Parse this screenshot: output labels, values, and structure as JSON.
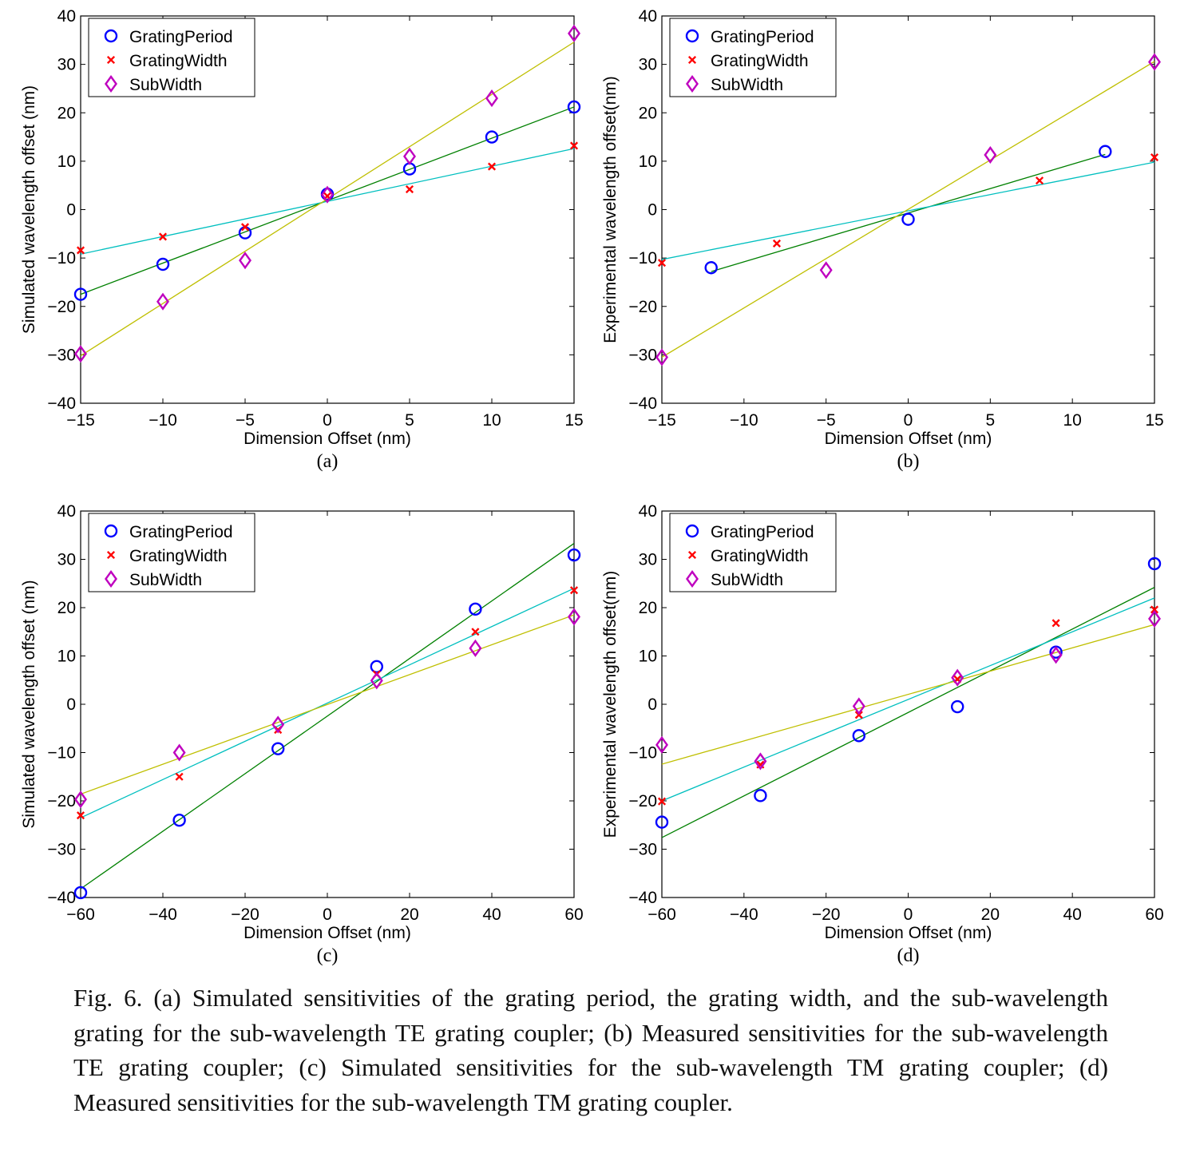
{
  "figure": {
    "caption": "Fig. 6. (a) Simulated sensitivities of the grating period, the grating width, and the sub-wavelength grating for the sub-wavelength TE grating coupler; (b) Measured sensitivities for the sub-wavelength TE grating coupler; (c) Simulated sensitivities for the sub-wavelength TM grating coupler; (d) Measured sensitivities for the sub-wavelength TM grating coupler."
  },
  "colors": {
    "GratingPeriod": "#0000ff",
    "GratingWidth": "#ff0000",
    "SubWidth": "#bf00bf",
    "fit_GratingPeriod": "#008000",
    "fit_GratingWidth": "#00bfbf",
    "fit_SubWidth": "#bfbf00"
  },
  "chart_data": [
    {
      "type": "scatter",
      "panel_label": "(a)",
      "xlabel": "Dimension Offset (nm)",
      "ylabel": "Simulated wavelength offset (nm)",
      "xlim": [
        -15,
        15
      ],
      "ylim": [
        -40,
        40
      ],
      "xticks": [
        -15,
        -10,
        -5,
        0,
        5,
        10,
        15
      ],
      "xtick_labels": [
        "−15",
        "−10",
        "−5",
        "0",
        "5",
        "10",
        "15"
      ],
      "yticks": [
        -40,
        -30,
        -20,
        -10,
        0,
        10,
        20,
        30,
        40
      ],
      "ytick_labels": [
        "−40",
        "−30",
        "−20",
        "−10",
        "0",
        "10",
        "20",
        "30",
        "40"
      ],
      "grid": false,
      "legend_position": "top-left",
      "series": [
        {
          "name": "GratingPeriod",
          "marker": "circle",
          "x": [
            -15,
            -10,
            -5,
            0,
            5,
            10,
            15
          ],
          "y": [
            -17.5,
            -11.3,
            -4.8,
            3.2,
            8.4,
            15,
            21.2
          ],
          "fit": [
            [
              -15,
              -17.5
            ],
            [
              15,
              21.2
            ]
          ]
        },
        {
          "name": "GratingWidth",
          "marker": "x",
          "x": [
            -15,
            -10,
            -5,
            0,
            5,
            10,
            15
          ],
          "y": [
            -8.4,
            -5.6,
            -3.6,
            2.8,
            4.2,
            8.9,
            13.2
          ],
          "fit": [
            [
              -15,
              -9.2
            ],
            [
              15,
              12.6
            ]
          ]
        },
        {
          "name": "SubWidth",
          "marker": "diamond",
          "x": [
            -15,
            -10,
            -5,
            0,
            5,
            10,
            15
          ],
          "y": [
            -29.8,
            -19,
            -10.5,
            3.1,
            11,
            23,
            36.4
          ],
          "fit": [
            [
              -15,
              -30.2
            ],
            [
              15,
              34.6
            ]
          ]
        }
      ]
    },
    {
      "type": "scatter",
      "panel_label": "(b)",
      "xlabel": "Dimension Offset (nm)",
      "ylabel": "Experimental wavelength offset(nm)",
      "xlim": [
        -15,
        15
      ],
      "ylim": [
        -40,
        40
      ],
      "xticks": [
        -15,
        -10,
        -5,
        0,
        5,
        10,
        15
      ],
      "xtick_labels": [
        "−15",
        "−10",
        "−5",
        "0",
        "5",
        "10",
        "15"
      ],
      "yticks": [
        -40,
        -30,
        -20,
        -10,
        0,
        10,
        20,
        30,
        40
      ],
      "ytick_labels": [
        "−40",
        "−30",
        "−20",
        "−10",
        "0",
        "10",
        "20",
        "30",
        "40"
      ],
      "grid": false,
      "legend_position": "top-left",
      "series": [
        {
          "name": "GratingPeriod",
          "marker": "circle",
          "x": [
            -12,
            0,
            12
          ],
          "y": [
            -12,
            -2,
            12
          ],
          "fit": [
            [
              -12,
              -12.8
            ],
            [
              12,
              11.4
            ]
          ]
        },
        {
          "name": "GratingWidth",
          "marker": "x",
          "x": [
            -15,
            -8,
            8,
            15
          ],
          "y": [
            -11,
            -7,
            6,
            10.8
          ],
          "fit": [
            [
              -15,
              -10.3
            ],
            [
              15,
              9.8
            ]
          ]
        },
        {
          "name": "SubWidth",
          "marker": "diamond",
          "x": [
            -15,
            -5,
            5,
            15
          ],
          "y": [
            -30.5,
            -12.5,
            11.3,
            30.5
          ],
          "fit": [
            [
              -15,
              -30.5
            ],
            [
              15,
              30.6
            ]
          ]
        }
      ]
    },
    {
      "type": "scatter",
      "panel_label": "(c)",
      "xlabel": "Dimension Offset (nm)",
      "ylabel": "Simulated wavelength offset (nm)",
      "xlim": [
        -60,
        60
      ],
      "ylim": [
        -40,
        40
      ],
      "xticks": [
        -60,
        -40,
        -20,
        0,
        20,
        40,
        60
      ],
      "xtick_labels": [
        "−60",
        "−40",
        "−20",
        "0",
        "20",
        "40",
        "60"
      ],
      "yticks": [
        -40,
        -30,
        -20,
        -10,
        0,
        10,
        20,
        30,
        40
      ],
      "ytick_labels": [
        "−40",
        "−30",
        "−20",
        "−10",
        "0",
        "10",
        "20",
        "30",
        "40"
      ],
      "grid": false,
      "legend_position": "top-left",
      "series": [
        {
          "name": "GratingPeriod",
          "marker": "circle",
          "x": [
            -60,
            -36,
            -12,
            12,
            36,
            60
          ],
          "y": [
            -39,
            -24,
            -9.2,
            7.8,
            19.7,
            30.9
          ],
          "fit": [
            [
              -60,
              -38.2
            ],
            [
              60,
              33.3
            ]
          ]
        },
        {
          "name": "GratingWidth",
          "marker": "x",
          "x": [
            -60,
            -36,
            -12,
            12,
            36,
            60
          ],
          "y": [
            -23,
            -15,
            -5.3,
            6.2,
            15,
            23.6
          ],
          "fit": [
            [
              -60,
              -23.5
            ],
            [
              60,
              24
            ]
          ]
        },
        {
          "name": "SubWidth",
          "marker": "diamond",
          "x": [
            -60,
            -36,
            -12,
            12,
            36,
            60
          ],
          "y": [
            -19.7,
            -10,
            -4.2,
            4.9,
            11.6,
            18.1
          ],
          "fit": [
            [
              -60,
              -18.6
            ],
            [
              60,
              18.5
            ]
          ]
        }
      ]
    },
    {
      "type": "scatter",
      "panel_label": "(d)",
      "xlabel": "Dimension Offset (nm)",
      "ylabel": "Experimental wavelength offset(nm)",
      "xlim": [
        -60,
        60
      ],
      "ylim": [
        -40,
        40
      ],
      "xticks": [
        -60,
        -40,
        -20,
        0,
        20,
        40,
        60
      ],
      "xtick_labels": [
        "−60",
        "−40",
        "−20",
        "0",
        "20",
        "40",
        "60"
      ],
      "yticks": [
        -40,
        -30,
        -20,
        -10,
        0,
        10,
        20,
        30,
        40
      ],
      "ytick_labels": [
        "−40",
        "−30",
        "−20",
        "−10",
        "0",
        "10",
        "20",
        "30",
        "40"
      ],
      "grid": false,
      "legend_position": "top-left",
      "series": [
        {
          "name": "GratingPeriod",
          "marker": "circle",
          "x": [
            -60,
            -36,
            -12,
            12,
            36,
            60
          ],
          "y": [
            -24.4,
            -18.9,
            -6.5,
            -0.5,
            10.8,
            29.1
          ],
          "fit": [
            [
              -60,
              -27.6
            ],
            [
              60,
              24.2
            ]
          ]
        },
        {
          "name": "GratingWidth",
          "marker": "x",
          "x": [
            -60,
            -36,
            -12,
            12,
            36,
            60
          ],
          "y": [
            -20.1,
            -12.5,
            -2.2,
            5.2,
            16.8,
            19.6
          ],
          "fit": [
            [
              -60,
              -20
            ],
            [
              60,
              22
            ]
          ]
        },
        {
          "name": "SubWidth",
          "marker": "diamond",
          "x": [
            -60,
            -36,
            -12,
            12,
            36,
            60
          ],
          "y": [
            -8.4,
            -11.8,
            -0.4,
            5.5,
            10.2,
            17.7
          ],
          "fit": [
            [
              -60,
              -12.4
            ],
            [
              60,
              16.5
            ]
          ]
        }
      ]
    }
  ]
}
